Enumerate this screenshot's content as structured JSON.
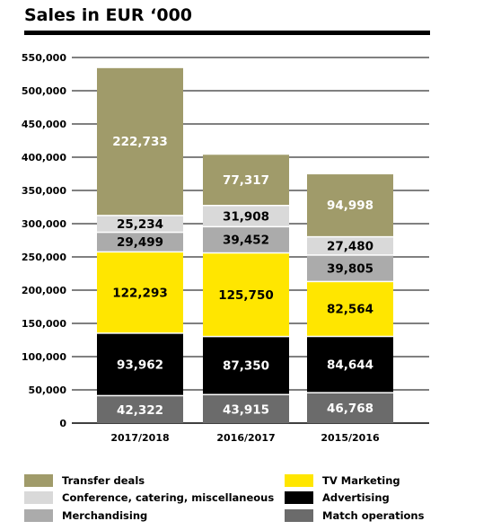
{
  "chart_data": {
    "type": "bar",
    "stacked": true,
    "title": "Sales in EUR ‘000",
    "categories": [
      "2017/2018",
      "2016/2017",
      "2015/2016"
    ],
    "ylim": [
      0,
      550000
    ],
    "yticks": [
      0,
      50000,
      100000,
      150000,
      200000,
      250000,
      300000,
      350000,
      400000,
      450000,
      500000,
      550000
    ],
    "ytick_labels": [
      "0",
      "50,000",
      "100,000",
      "150,000",
      "200,000",
      "250,000",
      "300,000",
      "350,000",
      "400,000",
      "450,000",
      "500,000",
      "550,000"
    ],
    "grid": true,
    "series": [
      {
        "name": "Match operations",
        "color": "#6b6b6b",
        "text_color": "#ffffff",
        "values": [
          42322,
          43915,
          46768
        ],
        "labels": [
          "42,322",
          "43,915",
          "46,768"
        ]
      },
      {
        "name": "Advertising",
        "color": "#000000",
        "text_color": "#ffffff",
        "values": [
          93962,
          87350,
          84644
        ],
        "labels": [
          "93,962",
          "87,350",
          "84,644"
        ]
      },
      {
        "name": "TV Marketing",
        "color": "#ffe600",
        "text_color": "#000000",
        "values": [
          122293,
          125750,
          82564
        ],
        "labels": [
          "122,293",
          "125,750",
          "82,564"
        ]
      },
      {
        "name": "Merchandising",
        "color": "#ababab",
        "text_color": "#000000",
        "values": [
          29499,
          39452,
          39805
        ],
        "labels": [
          "29,499",
          "39,452",
          "39,805"
        ]
      },
      {
        "name": "Conference, catering, miscellaneous",
        "color": "#d9d9d9",
        "text_color": "#000000",
        "values": [
          25234,
          31908,
          27480
        ],
        "labels": [
          "25,234",
          "31,908",
          "27,480"
        ]
      },
      {
        "name": "Transfer deals",
        "color": "#a09b6a",
        "text_color": "#ffffff",
        "values": [
          222733,
          77317,
          94998
        ],
        "labels": [
          "222,733",
          "77,317",
          "94,998"
        ]
      }
    ],
    "legend_placement": "bottom"
  }
}
